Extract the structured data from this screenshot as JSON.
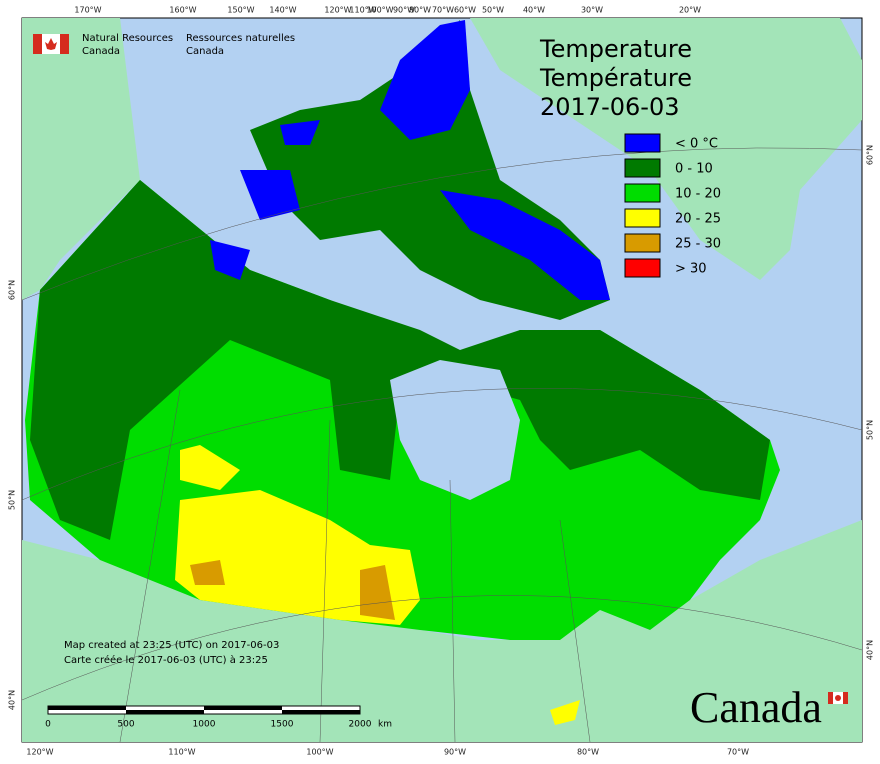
{
  "header": {
    "department_en": [
      "Natural Resources",
      "Canada"
    ],
    "department_fr": [
      "Ressources naturelles",
      "Canada"
    ]
  },
  "title": {
    "lines": [
      "Temperature",
      "Température",
      "2017-06-03"
    ]
  },
  "legend": {
    "items": [
      {
        "label": "< 0 °C",
        "color": "#0000ff"
      },
      {
        "label": "0 - 10",
        "color": "#007a00"
      },
      {
        "label": "10 - 20",
        "color": "#00dd00"
      },
      {
        "label": "20 - 25",
        "color": "#ffff00"
      },
      {
        "label": "25 - 30",
        "color": "#d89b00"
      },
      {
        "label": "> 30",
        "color": "#ff0000"
      }
    ]
  },
  "graticule": {
    "top": [
      "170°W",
      "160°W",
      "150°W",
      "140°W",
      "120°W",
      "110°W",
      "100°W",
      "90°W",
      "80°W",
      "70°W",
      "60°W",
      "50°W",
      "40°W",
      "30°W",
      "20°W"
    ],
    "bottom": [
      "120°W",
      "110°W",
      "100°W",
      "90°W",
      "80°W",
      "70°W"
    ],
    "left": [
      "60°N",
      "50°N",
      "40°N"
    ],
    "right": [
      "60°N",
      "50°N",
      "40°N"
    ]
  },
  "notes": [
    "Map created at 23:25 (UTC) on 2017-06-03",
    "Carte créée le 2017-06-03 (UTC) à 23:25"
  ],
  "scale_bar": {
    "labels": [
      "0",
      "500",
      "1000",
      "1500",
      "2000"
    ],
    "unit": "km"
  },
  "wordmark": "Canada"
}
